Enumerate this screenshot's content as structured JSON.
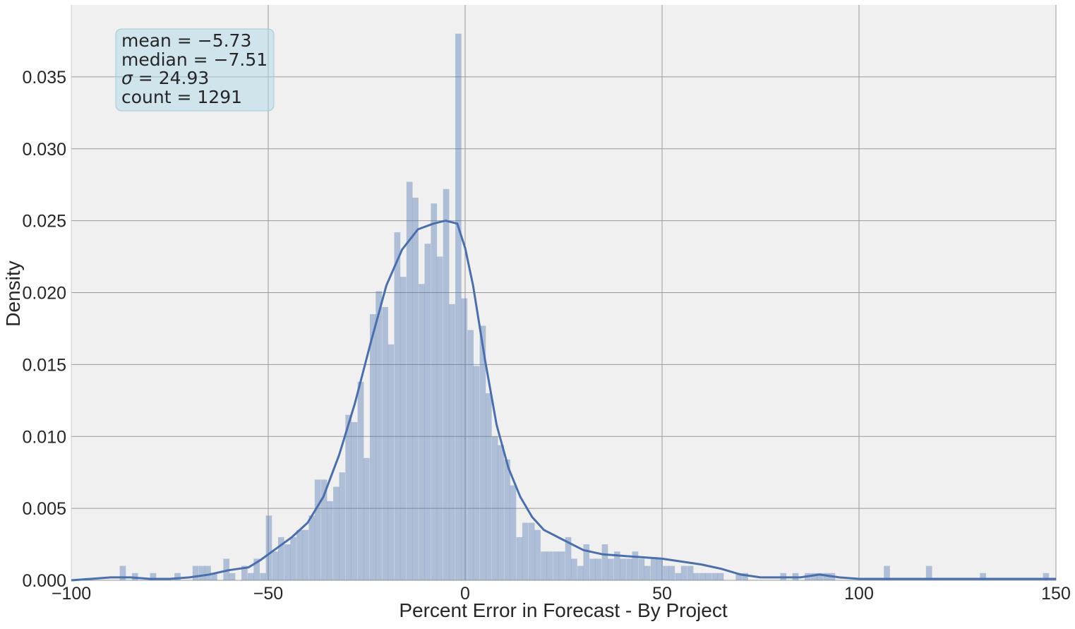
{
  "chart_data": {
    "type": "bar",
    "xlabel": "Percent Error in Forecast - By Project",
    "ylabel": "Density",
    "xlim": [
      -100,
      150
    ],
    "ylim": [
      0,
      0.04
    ],
    "xticks": [
      -100,
      -50,
      0,
      50,
      100,
      150
    ],
    "xtick_labels": [
      "−100",
      "−50",
      "0",
      "50",
      "100",
      "150"
    ],
    "yticks": [
      0.0,
      0.005,
      0.01,
      0.015,
      0.02,
      0.025,
      0.03,
      0.035
    ],
    "ytick_labels": [
      "0.000",
      "0.005",
      "0.010",
      "0.015",
      "0.020",
      "0.025",
      "0.030",
      "0.035"
    ],
    "grid": true,
    "bin_width": 1.55,
    "histogram": {
      "bin_lefts": [
        -87.7,
        -84.6,
        -80.0,
        -73.8,
        -69.2,
        -67.6,
        -66.1,
        -64.5,
        -61.4,
        -59.9,
        -56.8,
        -55.2,
        -53.7,
        -52.1,
        -50.6,
        -49.0,
        -47.5,
        -45.9,
        -44.4,
        -42.8,
        -41.3,
        -39.7,
        -38.2,
        -36.6,
        -35.1,
        -33.5,
        -32.0,
        -30.4,
        -28.9,
        -27.3,
        -25.8,
        -24.2,
        -22.7,
        -21.1,
        -19.6,
        -18.0,
        -16.5,
        -14.9,
        -13.4,
        -11.8,
        -10.3,
        -8.7,
        -7.2,
        -5.6,
        -4.1,
        -2.5,
        -1.0,
        0.6,
        2.1,
        3.7,
        5.2,
        6.8,
        8.3,
        9.9,
        11.4,
        13.0,
        14.5,
        16.1,
        17.6,
        19.2,
        20.7,
        22.3,
        23.8,
        25.4,
        26.9,
        28.5,
        30.0,
        31.6,
        33.1,
        34.7,
        36.2,
        37.8,
        39.3,
        40.9,
        42.4,
        44.0,
        45.5,
        47.1,
        48.6,
        50.2,
        51.7,
        53.3,
        54.8,
        56.4,
        57.9,
        59.5,
        61.0,
        62.6,
        64.1,
        68.7,
        70.3,
        80.0,
        83.1,
        86.2,
        87.8,
        89.3,
        90.9,
        92.4,
        106.3,
        117.0,
        130.7,
        146.7
      ],
      "densities": [
        0.001,
        0.0005,
        0.0005,
        0.0005,
        0.001,
        0.001,
        0.001,
        0.0005,
        0.0015,
        0.0005,
        0.001,
        0.0005,
        0.0015,
        0.0005,
        0.0045,
        0.002,
        0.003,
        0.0025,
        0.003,
        0.0035,
        0.0035,
        0.0045,
        0.007,
        0.007,
        0.0055,
        0.0065,
        0.0075,
        0.0115,
        0.011,
        0.0138,
        0.0085,
        0.0185,
        0.0201,
        0.019,
        0.0164,
        0.0242,
        0.0211,
        0.0277,
        0.0266,
        0.0206,
        0.0234,
        0.0262,
        0.0225,
        0.0272,
        0.0192,
        0.038,
        0.0196,
        0.0174,
        0.0149,
        0.0177,
        0.013,
        0.01,
        0.0094,
        0.0084,
        0.0066,
        0.003,
        0.004,
        0.004,
        0.0035,
        0.002,
        0.002,
        0.002,
        0.002,
        0.003,
        0.0015,
        0.001,
        0.0025,
        0.0015,
        0.0015,
        0.0025,
        0.0015,
        0.002,
        0.0015,
        0.0015,
        0.002,
        0.0015,
        0.001,
        0.0015,
        0.0015,
        0.001,
        0.001,
        0.0005,
        0.001,
        0.001,
        0.0005,
        0.0005,
        0.0005,
        0.0005,
        0.0005,
        0.0005,
        0.0005,
        0.0005,
        0.0005,
        0.0005,
        0.0005,
        0.0005,
        0.0005,
        0.0005,
        0.001,
        0.001,
        0.0005,
        0.0005
      ]
    },
    "kde": {
      "x": [
        -100,
        -95,
        -90,
        -85,
        -80,
        -75,
        -70,
        -65,
        -60,
        -55,
        -52,
        -48,
        -44,
        -40,
        -36,
        -32,
        -28,
        -24,
        -20,
        -16,
        -12,
        -8,
        -5,
        -2,
        0,
        2,
        5,
        8,
        11,
        14,
        17,
        20,
        25,
        30,
        35,
        40,
        45,
        50,
        55,
        60,
        65,
        70,
        75,
        80,
        85,
        90,
        95,
        100,
        105,
        110,
        115,
        120,
        125,
        130,
        135,
        140,
        145,
        150
      ],
      "y": [
        0.0,
        0.0001,
        0.0002,
        0.0002,
        0.0001,
        0.0001,
        0.0002,
        0.0004,
        0.0007,
        0.0009,
        0.0014,
        0.0022,
        0.003,
        0.004,
        0.0058,
        0.0087,
        0.0123,
        0.0165,
        0.0205,
        0.023,
        0.0244,
        0.0248,
        0.025,
        0.0248,
        0.0231,
        0.0205,
        0.0154,
        0.0108,
        0.0078,
        0.0058,
        0.0044,
        0.0035,
        0.0028,
        0.0021,
        0.0018,
        0.0017,
        0.0016,
        0.0015,
        0.0013,
        0.0011,
        0.0008,
        0.0004,
        0.0002,
        0.0002,
        0.0002,
        0.0004,
        0.0002,
        0.0001,
        0.0001,
        0.0001,
        0.0001,
        0.0001,
        0.0001,
        0.0001,
        0.0001,
        0.0001,
        0.0001,
        0.0001
      ]
    },
    "stats_box": {
      "mean_label": "mean",
      "mean_value": "−5.73",
      "median_label": "median",
      "median_value": "−7.51",
      "sigma_label": "σ",
      "sigma_value": "24.93",
      "count_label": "count",
      "count_value": "1291"
    },
    "colors": {
      "background": "#f0f0f0",
      "grid": "#9a9a9a",
      "bar": "#4c72b0",
      "kde": "#4a6fae",
      "stats_box": "#add8e6"
    }
  }
}
